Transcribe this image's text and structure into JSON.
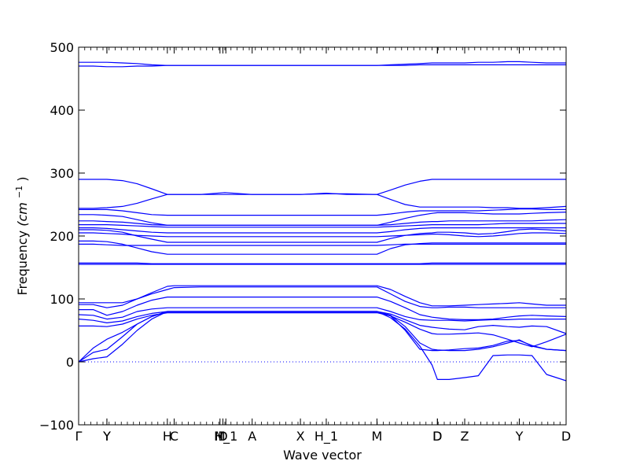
{
  "chart_data": {
    "type": "line",
    "xlabel": "Wave vector",
    "ylabel_text": "Frequency ",
    "ylabel_math": "(cm",
    "ylabel_sup": "−1",
    "ylabel_close": ")",
    "ylim": [
      -100,
      500
    ],
    "yticks": [
      -100,
      0,
      100,
      200,
      300,
      400,
      500
    ],
    "xlim": [
      0,
      100
    ],
    "zero_line": 0,
    "line_color": "#0000ff",
    "kpoints": [
      {
        "label": "Γ",
        "x": 0
      },
      {
        "label": "Y",
        "x": 5.8
      },
      {
        "label": "Y",
        "x": 5.8
      },
      {
        "label": "H",
        "x": 18.2
      },
      {
        "label": "C",
        "x": 19.6
      },
      {
        "label": "M",
        "x": 29.0
      },
      {
        "label": "D",
        "x": 29.6
      },
      {
        "label": "H_1",
        "x": 30.2
      },
      {
        "label": "A",
        "x": 35.6
      },
      {
        "label": "X",
        "x": 45.5
      },
      {
        "label": "H_1",
        "x": 50.8
      },
      {
        "label": "M",
        "x": 61.2
      },
      {
        "label": "D",
        "x": 73.6
      },
      {
        "label": "D",
        "x": 73.6
      },
      {
        "label": "Z",
        "x": 79.2
      },
      {
        "label": "Y",
        "x": 90.4
      },
      {
        "label": "D",
        "x": 100
      }
    ],
    "x": [
      0,
      3,
      5.8,
      9,
      12,
      15,
      18.2,
      19.6,
      25,
      30,
      35.6,
      40,
      45.5,
      50.8,
      55,
      61.2,
      64,
      67,
      70,
      72.5,
      73.6,
      76,
      79.2,
      82,
      85,
      88,
      90.4,
      93,
      96,
      100
    ],
    "series": [
      {
        "values": [
          476,
          476,
          476,
          475,
          474,
          472,
          471,
          471,
          471,
          471,
          471,
          471,
          471,
          471,
          471,
          471,
          472,
          473,
          474,
          475,
          475,
          475,
          475,
          476,
          476,
          477,
          477,
          476,
          475,
          475
        ]
      },
      {
        "values": [
          470,
          470,
          469,
          469,
          470,
          470,
          471,
          471,
          471,
          471,
          471,
          471,
          471,
          471,
          471,
          471,
          471,
          471,
          472,
          472,
          472,
          472,
          472,
          472,
          472,
          472,
          472,
          472,
          472,
          472
        ]
      },
      {
        "values": [
          290,
          290,
          290,
          288,
          283,
          275,
          266,
          266,
          266,
          266,
          266,
          266,
          266,
          267,
          267,
          266,
          273,
          281,
          287,
          290,
          290,
          290,
          290,
          290,
          290,
          290,
          290,
          290,
          290,
          290
        ]
      },
      {
        "values": [
          244,
          244,
          245,
          247,
          252,
          259,
          266,
          266,
          266,
          269,
          266,
          266,
          266,
          268,
          266,
          266,
          258,
          250,
          246,
          246,
          246,
          246,
          246,
          246,
          245,
          245,
          244,
          244,
          245,
          247
        ]
      },
      {
        "values": [
          242,
          242,
          242,
          240,
          237,
          234,
          233,
          233,
          233,
          233,
          233,
          233,
          233,
          233,
          233,
          233,
          235,
          238,
          240,
          240,
          240,
          240,
          240,
          240,
          241,
          242,
          243,
          243,
          242,
          242
        ]
      },
      {
        "values": [
          234,
          234,
          233,
          231,
          226,
          221,
          217,
          217,
          217,
          217,
          217,
          217,
          217,
          217,
          217,
          217,
          222,
          228,
          233,
          236,
          237,
          237,
          237,
          236,
          235,
          235,
          235,
          236,
          237,
          238
        ]
      },
      {
        "values": [
          224,
          224,
          223,
          222,
          220,
          218,
          217,
          217,
          217,
          217,
          217,
          217,
          217,
          217,
          217,
          217,
          218,
          220,
          222,
          223,
          223,
          224,
          224,
          224,
          224,
          224,
          224,
          224,
          225,
          226
        ]
      },
      {
        "values": [
          218,
          218,
          218,
          217,
          216,
          215,
          214,
          214,
          214,
          214,
          214,
          214,
          214,
          214,
          214,
          214,
          215,
          216,
          217,
          218,
          218,
          218,
          218,
          218,
          219,
          220,
          220,
          220,
          220,
          220
        ]
      },
      {
        "values": [
          213,
          213,
          212,
          210,
          208,
          206,
          205,
          205,
          205,
          205,
          205,
          205,
          205,
          205,
          205,
          205,
          207,
          210,
          212,
          213,
          213,
          213,
          213,
          213,
          213,
          213,
          213,
          213,
          213,
          213
        ]
      },
      {
        "values": [
          210,
          210,
          209,
          206,
          200,
          195,
          190,
          190,
          190,
          190,
          190,
          190,
          190,
          190,
          190,
          190,
          196,
          201,
          204,
          205,
          206,
          206,
          205,
          203,
          204,
          207,
          210,
          211,
          210,
          208
        ]
      },
      {
        "values": [
          205,
          205,
          204,
          203,
          201,
          200,
          199,
          199,
          199,
          199,
          199,
          199,
          199,
          199,
          199,
          199,
          200,
          201,
          202,
          203,
          203,
          202,
          200,
          199,
          200,
          202,
          204,
          205,
          205,
          204
        ]
      },
      {
        "values": [
          192,
          192,
          191,
          187,
          181,
          175,
          171,
          171,
          171,
          171,
          171,
          171,
          171,
          171,
          171,
          171,
          180,
          186,
          188,
          189,
          189,
          189,
          189,
          189,
          189,
          189,
          189,
          189,
          189,
          189
        ]
      },
      {
        "values": [
          187,
          187,
          186,
          185,
          185,
          185,
          185,
          185,
          185,
          185,
          185,
          185,
          185,
          185,
          185,
          185,
          186,
          187,
          187,
          187,
          187,
          187,
          187,
          187,
          187,
          187,
          187,
          187,
          187,
          187
        ]
      },
      {
        "values": [
          157,
          157,
          157,
          157,
          157,
          156,
          156,
          156,
          156,
          156,
          156,
          156,
          156,
          156,
          156,
          156,
          156,
          156,
          156,
          157,
          157,
          157,
          157,
          157,
          157,
          157,
          157,
          157,
          157,
          157
        ]
      },
      {
        "values": [
          155,
          155,
          155,
          155,
          155,
          155,
          155,
          155,
          155,
          155,
          155,
          155,
          155,
          155,
          155,
          155,
          155,
          155,
          155,
          155,
          155,
          155,
          155,
          155,
          155,
          155,
          155,
          155,
          155,
          155
        ]
      },
      {
        "values": [
          94,
          94,
          94,
          94,
          100,
          110,
          120,
          121,
          121,
          121,
          121,
          121,
          121,
          121,
          121,
          121,
          115,
          104,
          94,
          89,
          89,
          89,
          90,
          91,
          92,
          93,
          94,
          92,
          90,
          90
        ]
      },
      {
        "values": [
          91,
          91,
          86,
          90,
          100,
          108,
          115,
          118,
          119,
          119,
          119,
          119,
          119,
          119,
          119,
          119,
          108,
          96,
          88,
          86,
          86,
          87,
          87,
          86,
          86,
          86,
          86,
          86,
          86,
          86
        ]
      },
      {
        "values": [
          83,
          83,
          74,
          80,
          90,
          98,
          103,
          103,
          103,
          103,
          103,
          103,
          103,
          103,
          103,
          103,
          96,
          86,
          75,
          71,
          70,
          68,
          67,
          67,
          68,
          71,
          73,
          74,
          73,
          72
        ]
      },
      {
        "values": [
          75,
          74,
          68,
          71,
          80,
          84,
          86,
          86,
          86,
          86,
          86,
          86,
          86,
          86,
          86,
          86,
          80,
          72,
          67,
          66,
          66,
          66,
          65,
          66,
          67,
          67,
          68,
          68,
          68,
          68
        ]
      },
      {
        "values": [
          68,
          66,
          62,
          65,
          72,
          77,
          80,
          80,
          80,
          80,
          80,
          80,
          80,
          80,
          80,
          80,
          76,
          67,
          58,
          55,
          54,
          52,
          51,
          56,
          58,
          56,
          55,
          57,
          56,
          45
        ]
      },
      {
        "values": [
          57,
          57,
          56,
          60,
          68,
          74,
          78,
          78,
          78,
          78,
          78,
          78,
          78,
          78,
          78,
          78,
          73,
          63,
          52,
          45,
          44,
          44,
          45,
          46,
          43,
          36,
          30,
          24,
          32,
          44
        ]
      },
      {
        "values": [
          0,
          22,
          36,
          47,
          60,
          72,
          80,
          80,
          80,
          80,
          80,
          80,
          80,
          80,
          80,
          80,
          73,
          50,
          20,
          18,
          18,
          19,
          21,
          22,
          26,
          33,
          34,
          26,
          20,
          18
        ]
      },
      {
        "values": [
          0,
          15,
          20,
          40,
          60,
          72,
          80,
          80,
          80,
          80,
          80,
          80,
          80,
          80,
          80,
          80,
          74,
          56,
          30,
          20,
          19,
          18,
          18,
          20,
          24,
          30,
          35,
          25,
          20,
          18
        ]
      },
      {
        "values": [
          0,
          5,
          8,
          28,
          50,
          68,
          80,
          80,
          80,
          80,
          80,
          80,
          80,
          80,
          80,
          80,
          70,
          52,
          25,
          -5,
          -28,
          -28,
          -25,
          -22,
          10,
          11,
          11,
          10,
          -20,
          -30
        ]
      }
    ]
  }
}
